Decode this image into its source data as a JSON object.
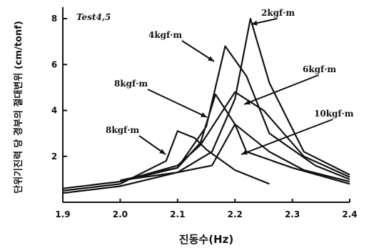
{
  "chart_data": {
    "type": "line",
    "title": "Test4,5",
    "xlabel": "진동수(Hz)",
    "ylabel": "단위기진력 당 경부의 절대변위 (cm/tonf)",
    "xlim": [
      1.9,
      2.4
    ],
    "ylim": [
      0,
      8.5
    ],
    "xticks": [
      "1.9",
      "2.0",
      "2.1",
      "2.2",
      "2.3",
      "2.4"
    ],
    "yticks": [
      "2",
      "4",
      "6",
      "8"
    ],
    "grid": false,
    "series": [
      {
        "name": "2kgf·m",
        "x": [
          2.0,
          2.1,
          2.16,
          2.2,
          2.227,
          2.26,
          2.32,
          2.4
        ],
        "y": [
          0.95,
          1.3,
          2.2,
          4.5,
          8.0,
          5.2,
          2.2,
          1.2
        ]
      },
      {
        "name": "4kgf·m",
        "x": [
          2.0,
          2.1,
          2.15,
          2.183,
          2.22,
          2.26,
          2.34,
          2.4
        ],
        "y": [
          0.95,
          1.5,
          3.3,
          6.8,
          5.5,
          3.0,
          1.6,
          1.0
        ]
      },
      {
        "name": "6kgf·m",
        "x": [
          1.9,
          2.0,
          2.1,
          2.14,
          2.2,
          2.25,
          2.32,
          2.4
        ],
        "y": [
          0.6,
          0.9,
          1.6,
          2.5,
          4.8,
          4.0,
          2.0,
          1.1
        ]
      },
      {
        "name": "8kgf·m",
        "x": [
          2.0,
          2.1,
          2.14,
          2.166,
          2.2,
          2.26,
          2.32,
          2.4
        ],
        "y": [
          0.9,
          1.5,
          2.6,
          4.7,
          3.4,
          2.2,
          1.4,
          0.9
        ]
      },
      {
        "name": "8kgf·m",
        "x": [
          1.9,
          2.0,
          2.08,
          2.1,
          2.13,
          2.15,
          2.2,
          2.26
        ],
        "y": [
          0.5,
          0.8,
          1.8,
          3.1,
          2.8,
          2.3,
          1.4,
          0.8
        ]
      },
      {
        "name": "10kgf·m",
        "x": [
          1.9,
          2.0,
          2.1,
          2.16,
          2.2,
          2.22,
          2.3,
          2.4
        ],
        "y": [
          0.4,
          0.7,
          1.3,
          1.6,
          3.4,
          2.2,
          1.5,
          0.8
        ]
      }
    ],
    "annotations": [
      {
        "text": "2kgf·m",
        "series": 0
      },
      {
        "text": "4kgf·m",
        "series": 1
      },
      {
        "text": "6kgf·m",
        "series": 2
      },
      {
        "text": "8kgf·m",
        "series": 3
      },
      {
        "text": "8kgf·m",
        "series": 4
      },
      {
        "text": "10kgf·m",
        "series": 5
      }
    ]
  }
}
